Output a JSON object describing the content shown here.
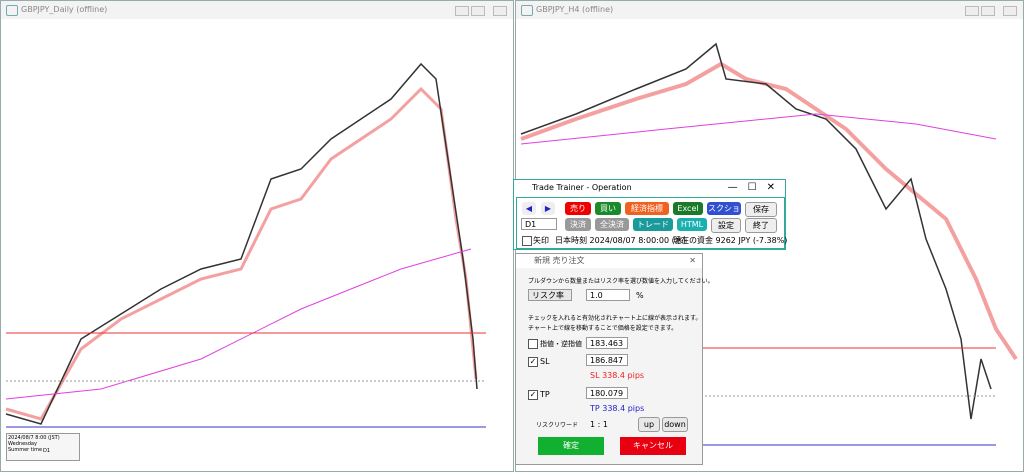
{
  "windows": [
    {
      "title": "GBPJPY_Daily (offline)",
      "info": [
        "2024/08/7 8:00 (JST)",
        "Wednesday",
        "Summer time",
        "D1"
      ]
    },
    {
      "title": "GBPJPY_H4 (offline)"
    }
  ],
  "operation": {
    "title": "Trade Trainer - Operation",
    "prev": "◀",
    "next": "▶",
    "sell": "売り",
    "buy": "買い",
    "econ": "経済指標",
    "excel": "Excel",
    "shot": "スクショ",
    "save": "保存",
    "timeframe": "D1",
    "close": "決済",
    "close_all": "全決済",
    "trade": "トレード",
    "html": "HTML",
    "settings": "設定",
    "exit": "終了",
    "arrow": "矢印",
    "time": "日本時刻 2024/08/07 8:00:00 (水)",
    "balance": "現在の資金 9262 JPY (-7.38%)"
  },
  "order": {
    "title": "新規 売り注文",
    "instruction": "プルダウンから数量またはリスク率を選び数値を入力してください。",
    "mode": "リスク率",
    "risk": "1.0",
    "unit": "%",
    "note1": "チェックを入れると有効化されチャート上に線が表示されます。",
    "note2": "チャート上で線を移動することで価格を設定できます。",
    "limit_label": "指値・逆指値",
    "limit": "183.463",
    "sl_label": "SL",
    "sl": "186.847",
    "sl_pips": "SL 338.4 pips",
    "tp_label": "TP",
    "tp": "180.079",
    "tp_pips": "TP 338.4 pips",
    "rr_label": "リスクリワード",
    "rr": "1 : 1",
    "up": "up",
    "down": "down",
    "ok": "確定",
    "cancel": "キャンセル"
  }
}
